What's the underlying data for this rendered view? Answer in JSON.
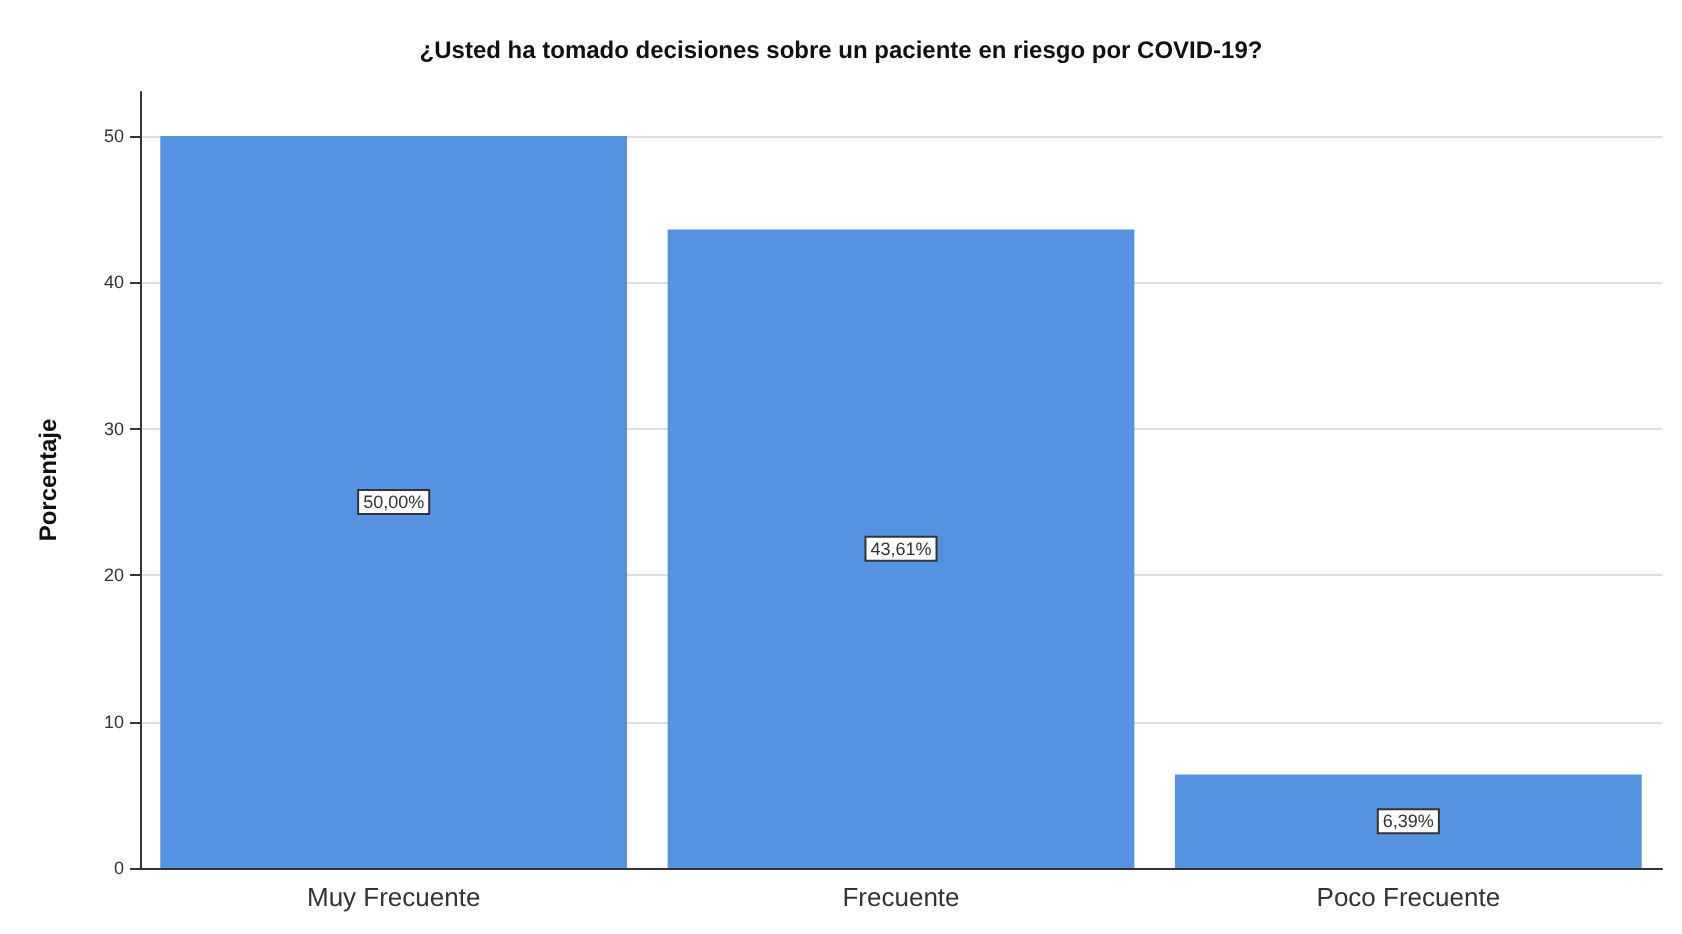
{
  "chart_data": {
    "type": "bar",
    "title": "¿Usted ha tomado decisiones sobre un paciente en riesgo por COVID-19?",
    "ylabel": "Porcentaje",
    "categories": [
      "Muy Frecuente",
      "Frecuente",
      "Poco Frecuente"
    ],
    "values": [
      50.0,
      43.61,
      6.39
    ],
    "value_labels": [
      "50,00%",
      "43,61%",
      "6,39%"
    ],
    "color": "#5593e2",
    "ylim": [
      0,
      53
    ],
    "yticks": [
      0,
      10,
      20,
      30,
      40,
      50
    ],
    "grid": "y"
  }
}
